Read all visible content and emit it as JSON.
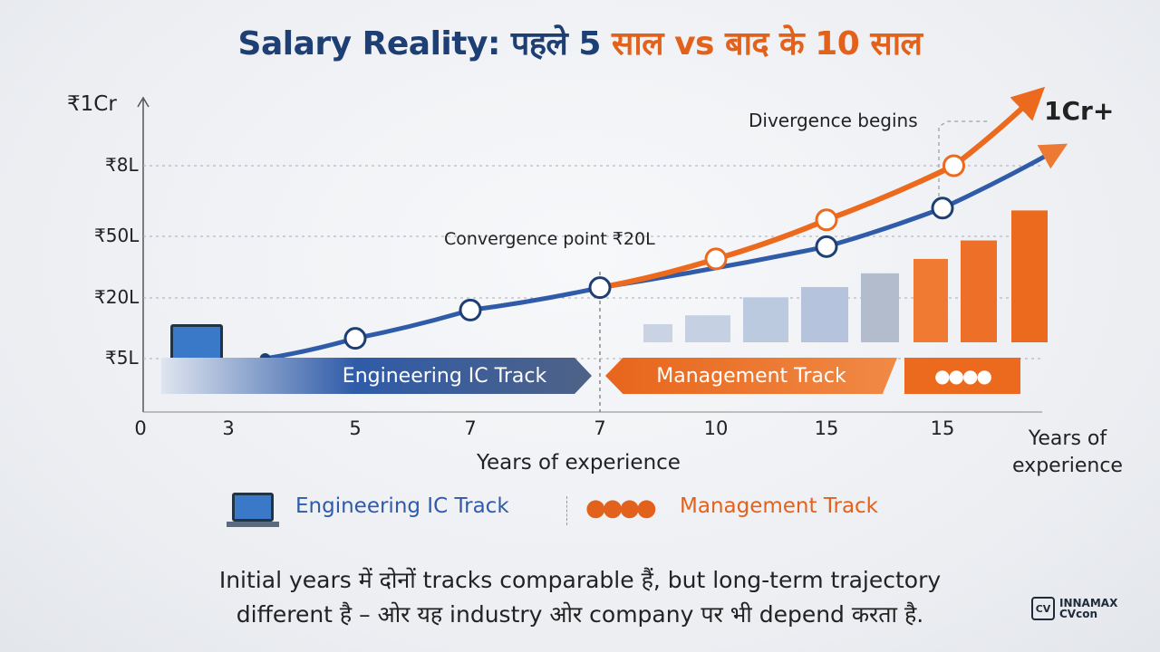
{
  "title": {
    "part1": "Salary Reality: पहले 5",
    "part2": "साल vs बाद के 10 साल"
  },
  "colors": {
    "blue": "#2f5ba8",
    "orange": "#ec6a1e",
    "title_blue": "#1e3f73",
    "title_orange": "#e2621b"
  },
  "chart_data": {
    "type": "line",
    "ylabel": "",
    "y_ticks": [
      {
        "label": "₹1Cr",
        "value": 100
      },
      {
        "label": "₹8L",
        "value": 80
      },
      {
        "label": "₹50L",
        "value": 50
      },
      {
        "label": "₹20L",
        "value": 20
      },
      {
        "label": "₹5L",
        "value": 5
      }
    ],
    "x_ticks": [
      "0",
      "3",
      "5",
      "7",
      "7",
      "10",
      "15",
      "15"
    ],
    "xlabel": "Years of experience",
    "xlabel_right": "Years of experience",
    "grid": true,
    "series": [
      {
        "name": "Engineering IC Track",
        "color": "#2f5ba8",
        "points": [
          [
            1.29,
            5
          ],
          [
            2,
            10
          ],
          [
            3,
            17
          ],
          [
            4,
            25
          ],
          [
            6,
            45
          ],
          [
            7,
            62
          ]
        ],
        "arrow_to": [
          8.0,
          85
        ]
      },
      {
        "name": "Management Track",
        "color": "#ec6a1e",
        "points": [
          [
            4,
            25
          ],
          [
            5,
            39
          ],
          [
            6,
            57
          ],
          [
            7.1,
            80
          ]
        ],
        "arrow_to": [
          7.8,
          102
        ]
      }
    ],
    "bars": {
      "baseline": 9,
      "values": [
        13.5,
        15.7,
        20.3,
        25.3,
        32,
        39,
        48,
        61
      ],
      "colors": [
        "#c9d3e3",
        "#c5d0e2",
        "#bccadf",
        "#b5c4dc",
        "#b3bccc",
        "#f07a32",
        "#ee7028",
        "#ec6a1e"
      ]
    },
    "annotations": {
      "convergence": "Convergence point ₹20L",
      "divergence": "Divergence begins",
      "top": "1Cr+"
    }
  },
  "tracks": {
    "ic": "Engineering IC Track",
    "mgmt": "Management Track"
  },
  "legend": {
    "ic": "Engineering IC Track",
    "mgmt": "Management Track"
  },
  "note": {
    "line1": "Initial years में दोनों tracks comparable हैं, but long-term trajectory",
    "line2": "different है – ओर यह industry ओर company पर भी depend करता है."
  },
  "logo": {
    "mark": "CV",
    "name": "INNAMAX",
    "sub": "CVcon"
  }
}
